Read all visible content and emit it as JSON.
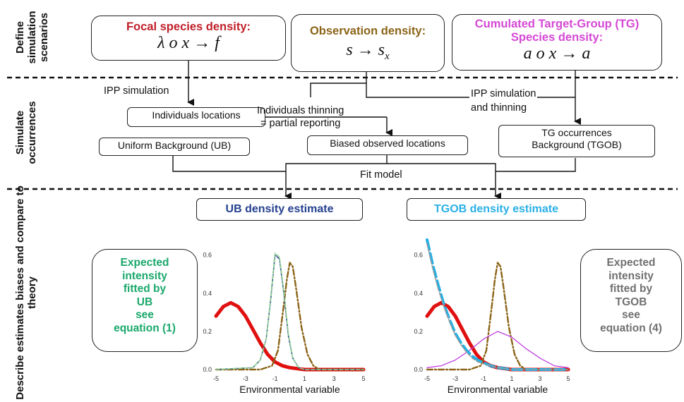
{
  "sections": {
    "define": "Define simulation scenarios",
    "simulate": "Simulate occurrences",
    "describe": "Describe estimates biases and compare to theory"
  },
  "scenarios": {
    "focal": {
      "title": "Focal species density:",
      "formula": "λ o x → f",
      "color": "#c0202a"
    },
    "observation": {
      "title": "Observation density:",
      "formula": "s → s",
      "subscript": "x",
      "color": "#8b6418"
    },
    "tg": {
      "title_line1": "Cumulated Target-Group (TG)",
      "title_line2": "Species density:",
      "formula": "a o x → a",
      "color": "#d548d5"
    }
  },
  "flow": {
    "ipp_simulation": "IPP simulation",
    "individuals_locations": "Individuals locations",
    "thinning_line1": "Individuals thinning",
    "thinning_line2": "= partial reporting",
    "ipp_thinning_line1": "IPP simulation",
    "ipp_thinning_line2": "and thinning",
    "uniform_background": "Uniform Background (UB)",
    "biased_locations": "Biased observed locations",
    "tg_line1": "TG occurrences",
    "tg_line2": "Background (TGOB)",
    "fit_model": "Fit model"
  },
  "estimates": {
    "ub": {
      "title": "UB density estimate",
      "color": "#24408e"
    },
    "tgob": {
      "title": "TGOB density estimate",
      "color": "#2ab0e6"
    }
  },
  "expected": {
    "ub": {
      "lines": [
        "Expected",
        "intensity",
        "fitted by",
        "UB",
        "see",
        "equation (1)"
      ],
      "color": "#1aa86b"
    },
    "tgob": {
      "lines": [
        "Expected",
        "intensity",
        "fitted by",
        "TGOB",
        "see",
        "equation (4)"
      ],
      "color": "#707070"
    }
  },
  "chart_data": [
    {
      "type": "line",
      "xlabel": "Environmental variable",
      "xticks": [
        "-5",
        "-3",
        "-1",
        "1",
        "3",
        "5"
      ],
      "yticks": [
        "0.0",
        "0.2",
        "0.4",
        "0.6"
      ],
      "xlim": [
        -5,
        5
      ],
      "ylim": [
        0,
        0.68
      ],
      "series": [
        {
          "kind": "focal",
          "color": "#e01010",
          "style": "solid-thick",
          "x": [
            -5,
            -4.5,
            -4,
            -3.5,
            -3,
            -2.5,
            -2,
            -1.5,
            -1,
            -0.5,
            0,
            1,
            2,
            3,
            4,
            5
          ],
          "y": [
            0.28,
            0.33,
            0.35,
            0.33,
            0.28,
            0.21,
            0.14,
            0.08,
            0.04,
            0.02,
            0.01,
            0.0,
            0.0,
            0.0,
            0.0,
            0.0
          ]
        },
        {
          "kind": "observation",
          "color": "#8b6418",
          "style": "dashdot",
          "x": [
            -5,
            -2,
            -1.2,
            -0.8,
            -0.4,
            -0.2,
            0,
            0.2,
            0.4,
            0.8,
            1.2,
            1.6,
            2,
            3,
            5
          ],
          "y": [
            0,
            0,
            0.02,
            0.1,
            0.34,
            0.47,
            0.56,
            0.54,
            0.44,
            0.22,
            0.08,
            0.02,
            0,
            0,
            0
          ]
        },
        {
          "kind": "fitted",
          "color": "#22408e",
          "style": "dashed",
          "x": [
            -5,
            -2.5,
            -2,
            -1.6,
            -1.3,
            -1,
            -0.7,
            -0.4,
            -0.1,
            0.2,
            0.6,
            1,
            5
          ],
          "y": [
            0,
            0.01,
            0.05,
            0.16,
            0.36,
            0.6,
            0.58,
            0.4,
            0.18,
            0.06,
            0.01,
            0,
            0
          ]
        },
        {
          "kind": "expected",
          "color": "#8fd08f",
          "style": "dashed-light",
          "x": [
            -5,
            -2.5,
            -2,
            -1.6,
            -1.3,
            -1,
            -0.7,
            -0.4,
            -0.1,
            0.2,
            0.6,
            1,
            5
          ],
          "y": [
            0,
            0.01,
            0.05,
            0.16,
            0.37,
            0.61,
            0.59,
            0.41,
            0.19,
            0.06,
            0.01,
            0,
            0
          ]
        }
      ]
    },
    {
      "type": "line",
      "xlabel": "Environmental variable",
      "xticks": [
        "-5",
        "-3",
        "-1",
        "1",
        "3",
        "5"
      ],
      "yticks": [
        "0.0",
        "0.2",
        "0.4",
        "0.6"
      ],
      "xlim": [
        -5,
        5
      ],
      "ylim": [
        0,
        0.68
      ],
      "series": [
        {
          "kind": "focal",
          "color": "#e01010",
          "style": "solid-thick",
          "x": [
            -5,
            -4.5,
            -4,
            -3.5,
            -3,
            -2.5,
            -2,
            -1.5,
            -1,
            -0.5,
            0,
            1,
            2,
            3,
            4,
            5
          ],
          "y": [
            0.28,
            0.33,
            0.35,
            0.33,
            0.28,
            0.21,
            0.14,
            0.08,
            0.04,
            0.02,
            0.01,
            0.0,
            0.0,
            0.0,
            0.0,
            0.0
          ]
        },
        {
          "kind": "observation",
          "color": "#8b6418",
          "style": "dashdot",
          "x": [
            -5,
            -2,
            -1.2,
            -0.8,
            -0.4,
            -0.2,
            0,
            0.2,
            0.4,
            0.8,
            1.2,
            1.6,
            2,
            3,
            5
          ],
          "y": [
            0,
            0,
            0.02,
            0.1,
            0.34,
            0.47,
            0.56,
            0.54,
            0.44,
            0.22,
            0.08,
            0.02,
            0,
            0,
            0
          ]
        },
        {
          "kind": "tg",
          "color": "#c040e0",
          "style": "solid-thin",
          "x": [
            -5,
            -4,
            -3,
            -2,
            -1,
            0,
            1,
            2,
            3,
            4,
            5
          ],
          "y": [
            0.01,
            0.02,
            0.05,
            0.1,
            0.16,
            0.2,
            0.17,
            0.11,
            0.06,
            0.02,
            0.01
          ]
        },
        {
          "kind": "fitted",
          "color": "#22b0e6",
          "style": "dashed-thick",
          "x": [
            -5,
            -4.6,
            -4.2,
            -3.8,
            -3.4,
            -3,
            -2.6,
            -2.2,
            -1.8,
            -1.4,
            -1,
            -0.5,
            0,
            1,
            2,
            5
          ],
          "y": [
            0.68,
            0.55,
            0.44,
            0.34,
            0.26,
            0.19,
            0.14,
            0.1,
            0.07,
            0.05,
            0.035,
            0.02,
            0.01,
            0.0,
            0.0,
            0.0
          ]
        },
        {
          "kind": "expected",
          "color": "#999999",
          "style": "dashed-light",
          "x": [
            -5,
            -4.6,
            -4.2,
            -3.8,
            -3.4,
            -3,
            -2.6,
            -2.2,
            -1.8,
            -1.4,
            -1,
            -0.5,
            0,
            1,
            2,
            5
          ],
          "y": [
            0.66,
            0.53,
            0.42,
            0.33,
            0.25,
            0.18,
            0.13,
            0.09,
            0.06,
            0.04,
            0.03,
            0.02,
            0.01,
            0.0,
            0.0,
            0.0
          ]
        }
      ]
    }
  ]
}
